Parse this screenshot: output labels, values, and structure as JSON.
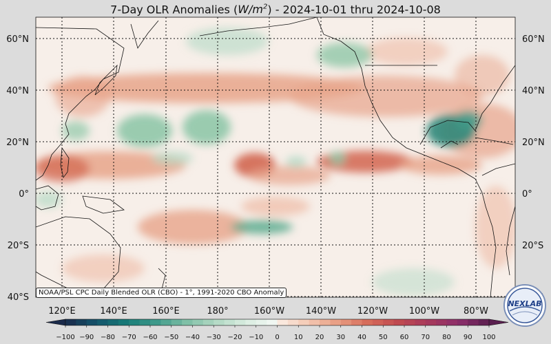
{
  "title": {
    "prefix": "7-Day OLR Anomalies (",
    "unit_base": "W/m",
    "unit_exp": "2",
    "suffix": ") - 2024-10-01 thru 2024-10-08"
  },
  "credit": "NOAA/PSL CPC Daily Blended OLR (CBO) - 1°, 1991-2020 CBO Anomaly",
  "logo_text": "NEXLAB",
  "map": {
    "lat_labels": [
      "60°N",
      "40°N",
      "20°N",
      "0°",
      "20°S",
      "40°S"
    ],
    "lon_labels": [
      "120°E",
      "140°E",
      "160°E",
      "180°",
      "160°W",
      "140°W",
      "120°W",
      "100°W",
      "80°W"
    ]
  },
  "colorbar": {
    "ticks": [
      "−100",
      "−90",
      "−80",
      "−70",
      "−60",
      "−50",
      "−40",
      "−30",
      "−20",
      "−10",
      "0",
      "10",
      "20",
      "30",
      "40",
      "50",
      "60",
      "70",
      "80",
      "90",
      "100"
    ],
    "colors_negative": [
      "#1a2a4a",
      "#14536b",
      "#177b78",
      "#3f9a8a",
      "#7fbfa6",
      "#b3d9c5",
      "#dbeee2",
      "#f4f9f5"
    ],
    "colors_positive": [
      "#fbeee6",
      "#f4c9b4",
      "#e89d82",
      "#d66c5a",
      "#c04a50",
      "#a63a5c",
      "#8c2f6b",
      "#5a1f4f"
    ]
  },
  "colors": {
    "neutral": "#f7efe9",
    "warm": "#e7a48a",
    "strong_warm": "#d2654f",
    "cool": "#8fc7a8",
    "strong_cool": "#2f8779",
    "coast": "#111111"
  }
}
